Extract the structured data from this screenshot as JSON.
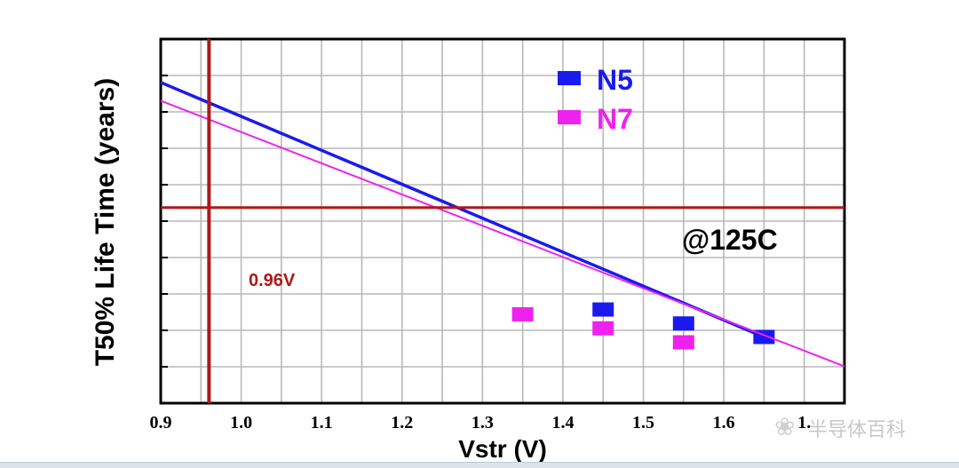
{
  "chart_data": {
    "type": "line",
    "xlabel": "Vstr (V)",
    "ylabel": "T50% Life Time (years)",
    "xlim": [
      0.9,
      1.75
    ],
    "x_ticks": [
      "0.9",
      "1.0",
      "1.1",
      "1.2",
      "1.3",
      "1.4",
      "1.5",
      "1.6",
      "1."
    ],
    "y_scale": "log",
    "y_tick_labels_visible": false,
    "grid": true,
    "legend_position": "top-right",
    "series": [
      {
        "name": "N5",
        "color": "#1a1aee",
        "points_x": [
          1.45,
          1.55,
          1.65
        ],
        "points_y": [
          2.6,
          1.6,
          1.0
        ],
        "fit_x": [
          0.9,
          1.65
        ],
        "fit_y": [
          7000,
          1.0
        ]
      },
      {
        "name": "N7",
        "color": "#ee22ee",
        "points_x": [
          1.35,
          1.45,
          1.55
        ],
        "points_y": [
          2.2,
          1.35,
          0.83
        ],
        "fit_x": [
          0.9,
          1.75
        ],
        "fit_y": [
          3700,
          0.36
        ]
      }
    ],
    "reference_lines": [
      {
        "orientation": "vertical",
        "x": 0.96,
        "color": "#b01818",
        "label": "0.96V"
      },
      {
        "orientation": "horizontal",
        "y": 90,
        "color": "#b01818"
      }
    ],
    "annotations": [
      {
        "text": "@125C"
      },
      {
        "text": "0.96V",
        "color": "#b01818"
      }
    ]
  },
  "watermark": {
    "text": "半导体百科",
    "icon": "wechat-icon"
  }
}
